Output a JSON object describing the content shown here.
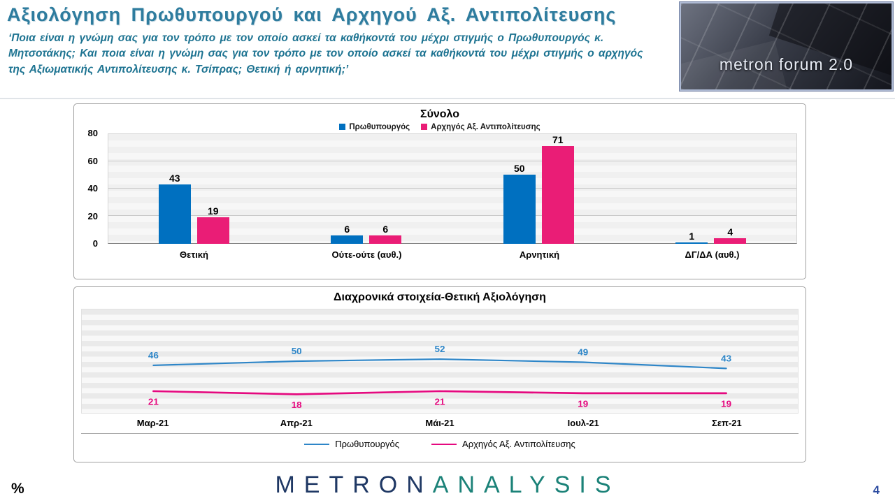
{
  "header": {
    "title": "Αξιολόγηση Πρωθυπουργού και Αρχηγού Αξ. Αντιπολίτευσης",
    "subtitle": "‘Ποια είναι η γνώμη σας για τον τρόπο με τον οποίο ασκεί τα καθήκοντά του μέχρι στιγμής ο Πρωθυπουργός κ. Μητσοτάκης; Και ποια είναι η γνώμη σας για τον τρόπο με τον οποίο ασκεί τα καθήκοντά του μέχρι στιγμής ο αρχηγός της Αξιωματικής Αντιπολίτευσης κ. Τσίπρας; Θετική ή αρνητική;’",
    "logo_text": "metron forum 2.0"
  },
  "chart_data": [
    {
      "type": "bar",
      "title": "Σύνολο",
      "categories": [
        "Θετική",
        "Ούτε-ούτε (αυθ.)",
        "Αρνητική",
        "ΔΓ/ΔΑ (αυθ.)"
      ],
      "series": [
        {
          "name": "Πρωθυπουργός",
          "color": "#0070C0",
          "values": [
            43,
            6,
            50,
            1
          ]
        },
        {
          "name": "Αρχηγός Αξ. Αντιπολίτευσης",
          "color": "#EA1D76",
          "values": [
            19,
            6,
            71,
            4
          ]
        }
      ],
      "ylim": [
        0,
        80
      ],
      "yticks": [
        0,
        20,
        40,
        60,
        80
      ],
      "legend_position": "top",
      "grid": true
    },
    {
      "type": "line",
      "title": "Διαχρονικά στοιχεία-Θετική Αξιολόγηση",
      "categories": [
        "Μαρ-21",
        "Απρ-21",
        "Μάι-21",
        "Ιουλ-21",
        "Σεπ-21"
      ],
      "series": [
        {
          "name": "Πρωθυπουργός",
          "color": "#2E86C8",
          "values": [
            46,
            50,
            52,
            49,
            43
          ]
        },
        {
          "name": "Αρχηγός Αξ. Αντιπολίτευσης",
          "color": "#E5097F",
          "values": [
            21,
            18,
            21,
            19,
            19
          ]
        }
      ],
      "ylim": [
        0,
        100
      ],
      "legend_position": "bottom",
      "grid": false
    }
  ],
  "footer": {
    "percent_label": "%",
    "brand_metron": "METRON",
    "brand_analysis": "ANALYSIS",
    "page_number": "4"
  }
}
